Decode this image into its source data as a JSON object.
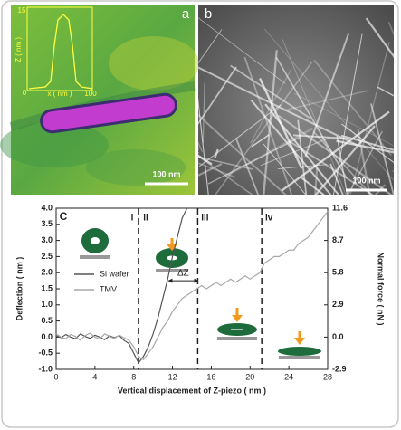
{
  "panels": [
    {
      "label": "a",
      "scale_bar": "100 nm",
      "inset": {
        "y_label": "Z ( nm )",
        "x_label": "x ( nm )",
        "y_max": "15",
        "origin": "0",
        "x_max": "100"
      }
    },
    {
      "label": "b",
      "scale_bar": "100 nm"
    }
  ],
  "chart_data": {
    "type": "line",
    "panel_label": "C",
    "xlabel": "Vertical displacement of Z-piezo ( nm )",
    "ylabel": "Deflection ( nm )",
    "y2label": "Normal force ( nN )",
    "x": [
      0,
      0.5,
      1,
      1.5,
      2,
      2.5,
      3,
      3.5,
      4,
      4.5,
      5,
      5.5,
      6,
      6.5,
      7,
      7.5,
      8,
      8.5,
      9,
      9.5,
      10,
      10.5,
      11,
      11.5,
      12,
      12.5,
      13,
      13.5,
      14,
      14.5,
      15,
      15.5,
      16,
      16.5,
      17,
      17.5,
      18,
      18.5,
      19,
      19.5,
      20,
      20.5,
      21,
      21.5,
      22,
      22.5,
      23,
      23.5,
      24,
      24.5,
      25,
      25.5,
      26,
      26.5,
      27,
      27.5,
      28
    ],
    "series": [
      {
        "name": "Si wafer",
        "color": "#555555",
        "values": [
          0.05,
          -0.02,
          0.08,
          0.0,
          -0.05,
          0.1,
          0.02,
          -0.04,
          0.06,
          0.0,
          -0.08,
          0.04,
          -0.02,
          0.05,
          -0.1,
          -0.2,
          -0.5,
          -0.8,
          -0.6,
          -0.3,
          0.1,
          0.6,
          1.2,
          1.8,
          2.5,
          3.1,
          3.7,
          4.0,
          null,
          null,
          null,
          null,
          null,
          null,
          null,
          null,
          null,
          null,
          null,
          null,
          null,
          null,
          null,
          null,
          null,
          null,
          null,
          null,
          null,
          null,
          null,
          null,
          null,
          null,
          null,
          null,
          null
        ]
      },
      {
        "name": "TMV",
        "color": "#a8a8a8",
        "values": [
          0.1,
          0.0,
          -0.05,
          0.08,
          0.02,
          -0.1,
          0.05,
          0.12,
          0.0,
          -0.06,
          0.1,
          0.02,
          -0.04,
          0.06,
          -0.02,
          -0.1,
          -0.3,
          -0.6,
          -0.7,
          -0.5,
          -0.3,
          0.0,
          0.3,
          0.5,
          0.8,
          1.0,
          1.2,
          1.3,
          1.4,
          1.5,
          1.6,
          1.5,
          1.6,
          1.7,
          1.6,
          1.7,
          1.8,
          1.7,
          1.8,
          1.9,
          1.8,
          1.9,
          2.0,
          2.3,
          2.4,
          2.5,
          2.5,
          2.6,
          2.7,
          2.7,
          2.9,
          3.0,
          3.1,
          3.3,
          3.5,
          3.7,
          3.9
        ]
      }
    ],
    "xlim": [
      0,
      28
    ],
    "xticks": [
      0,
      4,
      8,
      12,
      16,
      20,
      24,
      28
    ],
    "ylim": [
      -1.0,
      4.0
    ],
    "yticks": [
      {
        "value": -1.0,
        "label": "-1.0"
      },
      {
        "value": -0.5,
        "label": "-0.5"
      },
      {
        "value": 0.0,
        "label": "0.0"
      },
      {
        "value": 0.5,
        "label": "0.5"
      },
      {
        "value": 1.0,
        "label": "1.0"
      },
      {
        "value": 1.5,
        "label": "1.5"
      },
      {
        "value": 2.0,
        "label": "2.0"
      },
      {
        "value": 2.5,
        "label": "2.5"
      },
      {
        "value": 3.0,
        "label": "3.0"
      },
      {
        "value": 3.5,
        "label": "3.5"
      },
      {
        "value": 4.0,
        "label": "4.0"
      }
    ],
    "y2lim": [
      -2.9,
      11.6
    ],
    "y2ticks": [
      -2.9,
      {
        "value": 0.0,
        "label": "0.0"
      },
      2.9,
      5.8,
      8.7,
      11.6
    ],
    "vlines": [
      8.5,
      14.6,
      21.2
    ],
    "regions": [
      "i",
      "ii",
      "iii",
      "iv"
    ],
    "delta_z": {
      "label": "ΔZ",
      "x": [
        11.6,
        14.6
      ],
      "y": 1.75
    },
    "legend": "upper left"
  }
}
